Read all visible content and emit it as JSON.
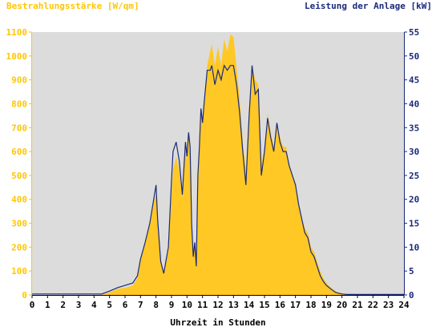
{
  "chart_data": {
    "type": "area",
    "xlabel": "Uhrzeit in Stunden",
    "ylabel_left": "Bestrahlungsstärke [W/qm]",
    "ylabel_right": "Leistung der Anlage [kW]",
    "xlim": [
      0,
      24
    ],
    "ylim_left": [
      0,
      1100
    ],
    "ylim_right": [
      0,
      55
    ],
    "x_ticks": [
      "0",
      "1",
      "2",
      "3",
      "4",
      "5",
      "6",
      "7",
      "8",
      "9",
      "10",
      "11",
      "12",
      "13",
      "14",
      "15",
      "16",
      "17",
      "18",
      "19",
      "20",
      "21",
      "22",
      "23",
      "24"
    ],
    "y_left_ticks": [
      "0",
      "100",
      "200",
      "300",
      "400",
      "500",
      "600",
      "700",
      "800",
      "900",
      "1000",
      "1100"
    ],
    "y_right_ticks": [
      "0",
      "5",
      "10",
      "15",
      "20",
      "25",
      "30",
      "35",
      "40",
      "45",
      "50",
      "55"
    ],
    "grid": false,
    "colors": {
      "plot_background": "#dcdcdc",
      "irradiance_fill": "#ffc825",
      "power_line": "#1a2a7a",
      "left_axis": "#ffc600",
      "right_axis": "#1a2a7a"
    },
    "series": [
      {
        "name": "Bestrahlungsstärke [W/qm]",
        "axis": "left",
        "style": "area",
        "x": [
          0,
          4.5,
          5,
          5.5,
          6,
          6.5,
          6.8,
          7,
          7.3,
          7.6,
          7.8,
          8,
          8.1,
          8.3,
          8.5,
          8.8,
          9,
          9.1,
          9.3,
          9.5,
          9.7,
          9.9,
          10.0,
          10.1,
          10.2,
          10.3,
          10.4,
          10.5,
          10.6,
          10.7,
          10.8,
          10.9,
          11.0,
          11.1,
          11.3,
          11.5,
          11.6,
          11.8,
          12.0,
          12.2,
          12.4,
          12.6,
          12.8,
          13.0,
          13.2,
          13.4,
          13.6,
          13.8,
          14.0,
          14.2,
          14.4,
          14.6,
          14.8,
          15.0,
          15.2,
          15.4,
          15.6,
          15.8,
          16.0,
          16.2,
          16.4,
          16.6,
          16.8,
          17.0,
          17.2,
          17.4,
          17.6,
          17.8,
          18.0,
          18.2,
          18.4,
          18.6,
          18.8,
          19.0,
          19.3,
          19.6,
          20.0,
          20.3,
          20.6,
          21,
          24
        ],
        "y": [
          0,
          0,
          10,
          25,
          30,
          40,
          70,
          140,
          220,
          300,
          380,
          420,
          320,
          150,
          100,
          180,
          420,
          520,
          580,
          520,
          410,
          620,
          560,
          680,
          640,
          300,
          180,
          210,
          150,
          480,
          600,
          780,
          740,
          790,
          960,
          1020,
          1050,
          960,
          1040,
          960,
          1070,
          1020,
          1090,
          1080,
          950,
          820,
          640,
          520,
          780,
          960,
          900,
          880,
          540,
          620,
          760,
          680,
          620,
          720,
          660,
          620,
          620,
          540,
          500,
          460,
          380,
          320,
          280,
          260,
          200,
          180,
          140,
          100,
          70,
          50,
          30,
          15,
          5,
          0,
          0,
          0,
          0
        ]
      },
      {
        "name": "Leistung der Anlage [kW]",
        "axis": "right",
        "style": "line",
        "x": [
          0,
          4.5,
          5,
          5.5,
          6,
          6.5,
          6.8,
          7,
          7.3,
          7.6,
          7.8,
          8,
          8.1,
          8.3,
          8.5,
          8.8,
          9,
          9.1,
          9.3,
          9.5,
          9.7,
          9.9,
          10.0,
          10.1,
          10.2,
          10.3,
          10.4,
          10.5,
          10.6,
          10.7,
          10.8,
          10.9,
          11.0,
          11.1,
          11.3,
          11.5,
          11.6,
          11.8,
          12.0,
          12.2,
          12.4,
          12.6,
          12.8,
          13.0,
          13.2,
          13.4,
          13.6,
          13.8,
          14.0,
          14.2,
          14.4,
          14.6,
          14.8,
          15.0,
          15.2,
          15.4,
          15.6,
          15.8,
          16.0,
          16.2,
          16.4,
          16.6,
          16.8,
          17.0,
          17.2,
          17.4,
          17.6,
          17.8,
          18.0,
          18.2,
          18.4,
          18.6,
          18.8,
          19.0,
          19.3,
          19.6,
          20.0,
          20.3,
          20.6,
          21,
          24
        ],
        "y": [
          0.2,
          0.2,
          0.8,
          1.5,
          2.0,
          2.5,
          4,
          7.5,
          11,
          15,
          19,
          23,
          16,
          7,
          4.5,
          10,
          24,
          30,
          32,
          28,
          21,
          32,
          29,
          34,
          31,
          15,
          8,
          11,
          6,
          25,
          31,
          39,
          36,
          40,
          47,
          47,
          48,
          44,
          47,
          45,
          48,
          47,
          48,
          48,
          44,
          38,
          30,
          23,
          37,
          48,
          42,
          43,
          25,
          30,
          37,
          33,
          30,
          36,
          32,
          30,
          30,
          27,
          25,
          23,
          19,
          16,
          13,
          12,
          9,
          8,
          6,
          4,
          2.8,
          2,
          1.2,
          0.5,
          0.2,
          0.1,
          0.1,
          0.1,
          0.1
        ]
      }
    ]
  }
}
